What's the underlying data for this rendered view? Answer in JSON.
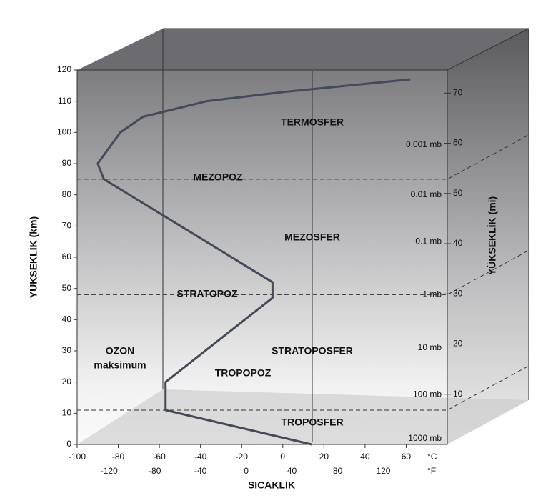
{
  "chart_data": {
    "type": "line",
    "x": [
      14,
      -57,
      -57,
      -5,
      -5,
      -87,
      -90,
      -79,
      -68,
      -37,
      1,
      62
    ],
    "values": [
      0,
      11,
      20,
      47,
      52,
      85,
      90,
      100,
      105,
      110,
      113,
      117
    ],
    "color": "#444a58",
    "xlim": [
      -100,
      80
    ],
    "xticks": [
      -100,
      -80,
      -60,
      -40,
      -20,
      0,
      20,
      40,
      60
    ],
    "x_unit": "°C",
    "x2lim": [
      -148,
      176
    ],
    "x2ticks": [
      -120,
      -80,
      -40,
      0,
      40,
      80,
      120
    ],
    "x2_unit": "°F",
    "ylim": [
      0,
      120
    ],
    "yticks": [
      0,
      10,
      20,
      30,
      40,
      50,
      60,
      70,
      80,
      90,
      100,
      110,
      120
    ],
    "y2lim": [
      0,
      74.6
    ],
    "y2ticks": [
      10,
      20,
      30,
      40,
      50,
      60,
      70
    ],
    "pressure_ticks": [
      {
        "value": 0,
        "label": "1000 mb"
      },
      {
        "value": 16,
        "label": "100 mb"
      },
      {
        "value": 31,
        "label": "10 mb"
      },
      {
        "value": 48,
        "label": "1 mb"
      },
      {
        "value": 65,
        "label": "0.1 mb"
      },
      {
        "value": 80,
        "label": "0.01 mb"
      },
      {
        "value": 96,
        "label": "0.001 mb"
      }
    ],
    "boundaries": [
      11,
      48,
      85
    ],
    "xlabel": "SICAKLIK",
    "ylabel": "YÜKSEKLİK (km)",
    "y2label": "YÜKSEKLİK (mi)",
    "layers": [
      "TERMOSFER",
      "MEZOPOZ",
      "MEZOSFER",
      "STRATOPOZ",
      "STRATOPOSFER",
      "TROPOPOZ",
      "TROPOSFER"
    ],
    "ozone_label": [
      "OZON",
      "maksimum"
    ]
  }
}
